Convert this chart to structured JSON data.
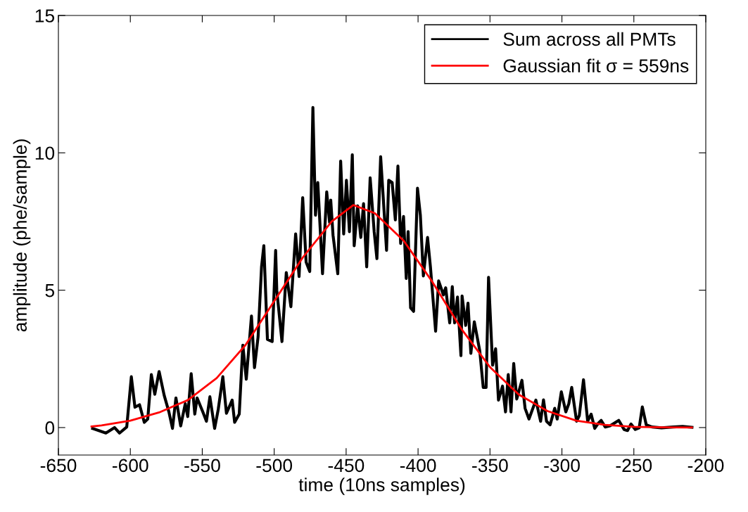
{
  "chart_data": {
    "type": "line",
    "xlabel": "time (10ns samples)",
    "ylabel": "amplitude (phe/sample)",
    "xlim": [
      -650,
      -200
    ],
    "ylim": [
      -1,
      15
    ],
    "xticks": [
      -650,
      -600,
      -550,
      -500,
      -450,
      -400,
      -350,
      -300,
      -250,
      -200
    ],
    "yticks": [
      0,
      5,
      10,
      15
    ],
    "grid": false,
    "legend": "top right",
    "marker": "none",
    "line_style": "solid",
    "series": [
      {
        "name": "Sum across all PMTs",
        "color": "#000000",
        "x": [
          -626.2,
          -617,
          -611,
          -607.5,
          -602.5,
          -599.3,
          -596.8,
          -593.6,
          -590.3,
          -587.9,
          -585.4,
          -583,
          -580,
          -576.5,
          -573.2,
          -570.7,
          -568.3,
          -565,
          -561.8,
          -560.1,
          -557.7,
          -555.2,
          -553.6,
          -549.6,
          -547.1,
          -544.7,
          -541.4,
          -538.9,
          -535.7,
          -533.2,
          -529.2,
          -527.5,
          -524.3,
          -521.8,
          -519.4,
          -515.8,
          -513.7,
          -511.2,
          -508.8,
          -507.2,
          -504.7,
          -501.4,
          -499,
          -498.2,
          -494.6,
          -491.6,
          -488.4,
          -485.1,
          -482.7,
          -480.2,
          -477.8,
          -475.3,
          -473.1,
          -471.3,
          -469.7,
          -466.4,
          -463.5,
          -461.5,
          -460.7,
          -459.1,
          -455.8,
          -453.8,
          -451.7,
          -449.8,
          -447.7,
          -445.7,
          -444.4,
          -442,
          -439.8,
          -437.9,
          -435.7,
          -433.3,
          -430.5,
          -428.6,
          -426,
          -421.9,
          -420.4,
          -418,
          -415.8,
          -414,
          -412.1,
          -410.1,
          -408.2,
          -406.9,
          -405.2,
          -403.1,
          -400.4,
          -398.4,
          -396.3,
          -393.4,
          -391.4,
          -387.8,
          -385.7,
          -382.4,
          -380.8,
          -378,
          -376.2,
          -374.6,
          -372.6,
          -370.2,
          -369.4,
          -366.9,
          -365.3,
          -363.3,
          -360.9,
          -357.1,
          -354.7,
          -352.7,
          -351,
          -348.2,
          -346.1,
          -344.1,
          -341.3,
          -339.2,
          -337.3,
          -335.4,
          -333.5,
          -331.4,
          -327.8,
          -325.6,
          -322.9,
          -318.1,
          -314.8,
          -312.8,
          -310.7,
          -308.2,
          -305,
          -303.3,
          -300.4,
          -297.3,
          -295.2,
          -293.2,
          -289.8,
          -287.9,
          -285,
          -282.1,
          -279.7,
          -277.2,
          -274.8,
          -272.7,
          -269.9,
          -266.6,
          -260.5,
          -256.8,
          -254.4,
          -252,
          -249,
          -246.3,
          -244.1,
          -241.4,
          -237.3,
          -230.8,
          -222.6,
          -216.1,
          -209.6
        ],
        "values": [
          -0.03,
          -0.2,
          0,
          -0.2,
          0.02,
          1.85,
          0.74,
          0.83,
          0.19,
          0.31,
          1.93,
          1.21,
          2.04,
          1.18,
          0.57,
          -0.03,
          1.08,
          0.06,
          0.87,
          0.4,
          1.96,
          0.49,
          1.08,
          0.57,
          0.23,
          1.12,
          -0.03,
          0.66,
          1.85,
          0.52,
          1.0,
          0.19,
          0.49,
          3.0,
          1.76,
          4.06,
          2.18,
          3.3,
          5.85,
          6.62,
          3.21,
          3.13,
          6.45,
          5.0,
          3.13,
          5.64,
          4.4,
          7.05,
          5.5,
          8.37,
          6.02,
          5.68,
          11.65,
          7.73,
          8.92,
          5.6,
          8.58,
          7.47,
          8.28,
          7.0,
          5.6,
          9.7,
          7.05,
          9.0,
          7.13,
          9.93,
          6.62,
          8.07,
          6.92,
          8.15,
          5.85,
          9.09,
          7.13,
          6.15,
          9.86,
          6.45,
          9.0,
          8.92,
          7.56,
          9.52,
          6.7,
          7.68,
          5.43,
          7.13,
          4.36,
          4.23,
          8.71,
          7.73,
          5.52,
          6.92,
          5.85,
          3.51,
          5.34,
          4.83,
          5.09,
          3.81,
          5.13,
          3.81,
          4.75,
          2.62,
          4.79,
          3.72,
          4.53,
          2.7,
          3.85,
          2.79,
          1.46,
          1.46,
          5.47,
          2.27,
          2.87,
          1.0,
          1.51,
          0.57,
          1.93,
          0.57,
          2.33,
          1.04,
          1.72,
          0.7,
          0.31,
          1.0,
          0.23,
          1.01,
          0.23,
          0.1,
          0.7,
          0.31,
          1.3,
          0.57,
          0.87,
          1.46,
          0.23,
          0.44,
          1.74,
          0.23,
          0.49,
          -0.03,
          0.15,
          0.26,
          0.02,
          0.06,
          0.26,
          -0.07,
          -0.11,
          0.13,
          -0.07,
          -0.01,
          0.75,
          0.1,
          0.02,
          -0.01,
          0.02,
          0.04,
          0.01
        ]
      },
      {
        "name": "Gaussian fit σ = 559ns",
        "color": "#ff0000",
        "x": [
          -627,
          -620,
          -600,
          -580,
          -560,
          -540,
          -520,
          -500,
          -480,
          -460,
          -445,
          -430,
          -410,
          -390,
          -370,
          -350,
          -330,
          -310,
          -290,
          -270,
          -250,
          -230,
          -209.6
        ],
        "values": [
          0.04,
          0.08,
          0.25,
          0.55,
          1.0,
          1.8,
          3.0,
          4.6,
          6.2,
          7.5,
          8.1,
          7.8,
          6.8,
          5.3,
          3.6,
          2.2,
          1.2,
          0.6,
          0.25,
          0.1,
          0.03,
          0.01,
          0.0
        ]
      }
    ]
  }
}
